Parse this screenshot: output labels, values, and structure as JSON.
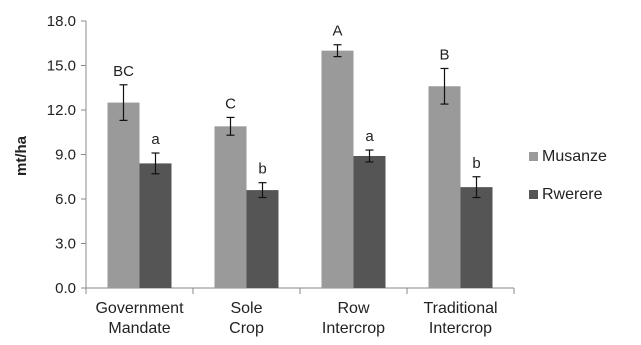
{
  "chart_data": {
    "type": "bar",
    "ylabel": "mt/ha",
    "ylim": [
      0,
      18
    ],
    "yticks": [
      "0.0",
      "3.0",
      "6.0",
      "9.0",
      "12.0",
      "15.0",
      "18.0"
    ],
    "categories": [
      [
        "Government",
        "Mandate"
      ],
      [
        "Sole",
        "Crop"
      ],
      [
        "Row",
        "Intercrop"
      ],
      [
        "Traditional",
        "Intercrop"
      ]
    ],
    "series": [
      {
        "name": "Musanze",
        "color": "#9a9a9a",
        "values": [
          12.5,
          10.9,
          16.0,
          13.6
        ],
        "errors": [
          1.2,
          0.6,
          0.4,
          1.2
        ],
        "labels": [
          "BC",
          "C",
          "A",
          "B"
        ]
      },
      {
        "name": "Rwerere",
        "color": "#555555",
        "values": [
          8.4,
          6.6,
          8.9,
          6.8
        ],
        "errors": [
          0.7,
          0.5,
          0.4,
          0.7
        ],
        "labels": [
          "a",
          "b",
          "a",
          "b"
        ]
      }
    ],
    "legend": "right",
    "grid": false
  }
}
